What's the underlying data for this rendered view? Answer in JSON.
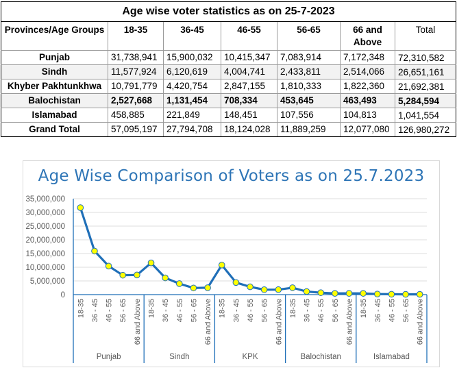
{
  "table": {
    "title": "Age wise voter statistics as on 25-7-2023",
    "headers": [
      "Provinces/Age Groups",
      "18-35",
      "36-45",
      "46-55",
      "56-65",
      "66 and Above",
      "Total"
    ],
    "rows": [
      {
        "province": "Punjab",
        "values": [
          "31,738,941",
          "15,900,032",
          "10,415,347",
          "7,083,914",
          "7,172,348",
          "72,310,582"
        ]
      },
      {
        "province": "Sindh",
        "values": [
          "11,577,924",
          "6,120,619",
          "4,004,741",
          "2,433,811",
          "2,514,066",
          "26,651,161"
        ]
      },
      {
        "province": "Khyber Pakhtunkhwa",
        "values": [
          "10,791,779",
          "4,420,754",
          "2,847,155",
          "1,810,333",
          "1,822,360",
          "21,692,381"
        ]
      },
      {
        "province": "Balochistan",
        "values": [
          "2,527,668",
          "1,131,454",
          "708,334",
          "453,645",
          "463,493",
          "5,284,594"
        ]
      },
      {
        "province": "Islamabad",
        "values": [
          "458,885",
          "221,849",
          "148,451",
          "107,556",
          "104,813",
          "1,041,554"
        ]
      },
      {
        "province": "Grand Total",
        "values": [
          "57,095,197",
          "27,794,708",
          "18,124,028",
          "11,889,259",
          "12,077,080",
          "126,980,272"
        ]
      }
    ]
  },
  "chart_data": {
    "type": "line",
    "title": "Age Wise Comparison of Voters as on 25.7.2023",
    "xlabel": "",
    "ylabel": "",
    "ylim": [
      0,
      35000000
    ],
    "yticks": [
      0,
      5000000,
      10000000,
      15000000,
      20000000,
      25000000,
      30000000,
      35000000
    ],
    "ytick_labels": [
      "0",
      "5,000,000",
      "10,000,000",
      "15,000,000",
      "20,000,000",
      "25,000,000",
      "30,000,000",
      "35,000,000"
    ],
    "grid": true,
    "legend": "none",
    "line_color": "#1f6fb8",
    "marker_color": "#ffff00",
    "groups": [
      {
        "name": "Punjab",
        "categories": [
          "18-35",
          "36 - 45",
          "46 - 55",
          "56 - 65",
          "66 and Above"
        ],
        "values": [
          31738941,
          15900032,
          10415347,
          7083914,
          7172348
        ]
      },
      {
        "name": "Sindh",
        "categories": [
          "18-35",
          "36 - 45",
          "46 - 55",
          "56 - 65",
          "66 and Above"
        ],
        "values": [
          11577924,
          6120619,
          4004741,
          2433811,
          2514066
        ]
      },
      {
        "name": "KPK",
        "categories": [
          "18-35",
          "36 - 45",
          "46 - 55",
          "56 - 65",
          "66 and Above"
        ],
        "values": [
          10791779,
          4420754,
          2847155,
          1810333,
          1822360
        ]
      },
      {
        "name": "Balochistan",
        "categories": [
          "18-35",
          "36 - 45",
          "46 - 55",
          "56 - 65",
          "66 and Above"
        ],
        "values": [
          2527668,
          1131454,
          708334,
          453645,
          463493
        ]
      },
      {
        "name": "Islamabad",
        "categories": [
          "18-35",
          "36 - 45",
          "46 - 55",
          "56 - 65",
          "66 and Above"
        ],
        "values": [
          458885,
          221849,
          148451,
          107556,
          104813
        ]
      }
    ]
  }
}
